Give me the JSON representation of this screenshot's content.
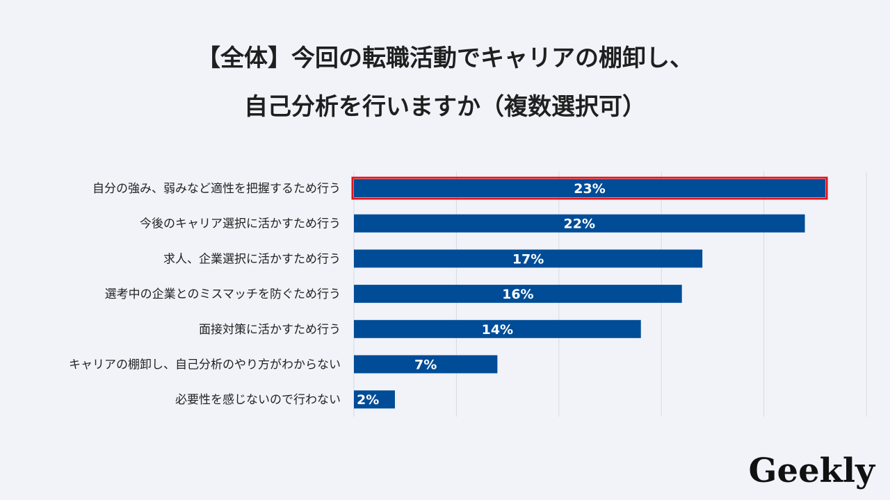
{
  "chart_data": {
    "type": "bar",
    "orientation": "horizontal",
    "title_lines": [
      "【全体】今回の転職活動でキャリアの棚卸し、",
      "自己分析を行いますか（複数選択可）"
    ],
    "categories": [
      "自分の強み、弱みなど適性を把握するため行う",
      "今後のキャリア選択に活かすため行う",
      "求人、企業選択に活かすため行う",
      "選考中の企業とのミスマッチを防ぐため行う",
      "面接対策に活かすため行う",
      "キャリアの棚卸し、自己分析のやり方がわからない",
      "必要性を感じないので行わない"
    ],
    "values": [
      23,
      22,
      17,
      16,
      14,
      7,
      2
    ],
    "value_labels": [
      "23%",
      "22%",
      "17%",
      "16%",
      "14%",
      "7%",
      "2%"
    ],
    "xlim": [
      0,
      25
    ],
    "grid": true,
    "highlight_index": 0,
    "colors": {
      "bar": "#004c97",
      "highlight": "#e0141b",
      "grid": "#d6dae3",
      "background": "#f1f3f9"
    }
  },
  "logo": {
    "text": "Geekly"
  }
}
